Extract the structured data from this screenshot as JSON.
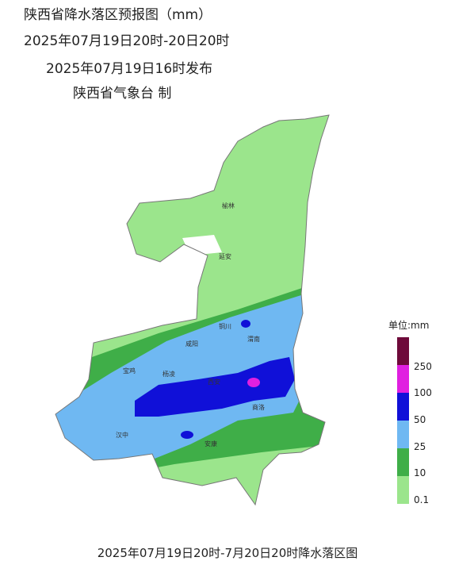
{
  "header": {
    "title": "陕西省降水落区预报图（mm）",
    "period": "2025年07月19日20时-20日20时",
    "issued": "2025年07月19日16时发布",
    "issuer": "陕西省气象台 制"
  },
  "cities": [
    "榆林",
    "延安",
    "铜川",
    "渭南",
    "咸阳",
    "宝鸡",
    "西安",
    "杨凌",
    "商洛",
    "汉中",
    "安康"
  ],
  "legend": {
    "unit": "单位:mm",
    "ticks": [
      250,
      100,
      50,
      25,
      10,
      0.1
    ]
  },
  "caption": "2025年07月19日20时-7月20日20时降水落区图"
}
